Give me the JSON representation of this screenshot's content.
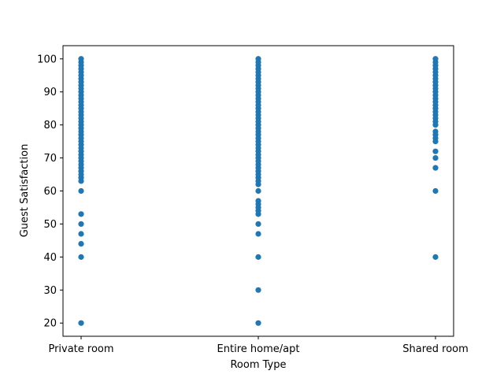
{
  "chart_data": {
    "type": "scatter",
    "title": "",
    "xlabel": "Room Type",
    "ylabel": "Guest Satisfaction",
    "categories": [
      "Private room",
      "Entire home/apt",
      "Shared room"
    ],
    "ylim": [
      16,
      104
    ],
    "yticks": [
      20,
      30,
      40,
      50,
      60,
      70,
      80,
      90,
      100
    ],
    "grid": false,
    "legend": "none",
    "marker_color": "#1f77b4",
    "points": [
      {
        "category": "Private room",
        "values": [
          20,
          40,
          44,
          47,
          50,
          53,
          60,
          63,
          64,
          65,
          66,
          67,
          68,
          69,
          70,
          71,
          72,
          73,
          74,
          75,
          76,
          77,
          78,
          79,
          80,
          81,
          82,
          83,
          84,
          85,
          86,
          87,
          88,
          89,
          90,
          91,
          92,
          93,
          94,
          95,
          96,
          97,
          98,
          99,
          100
        ]
      },
      {
        "category": "Entire home/apt",
        "values": [
          20,
          30,
          40,
          47,
          50,
          53,
          54,
          55,
          56,
          57,
          60,
          62,
          63,
          64,
          65,
          66,
          67,
          68,
          69,
          70,
          71,
          72,
          73,
          74,
          75,
          76,
          77,
          78,
          79,
          80,
          81,
          82,
          83,
          84,
          85,
          86,
          87,
          88,
          89,
          90,
          91,
          92,
          93,
          94,
          95,
          96,
          97,
          98,
          99,
          100
        ]
      },
      {
        "category": "Shared room",
        "values": [
          40,
          60,
          67,
          70,
          72,
          75,
          76,
          77,
          78,
          80,
          81,
          82,
          83,
          84,
          85,
          86,
          87,
          88,
          89,
          90,
          91,
          92,
          93,
          94,
          95,
          96,
          97,
          98,
          99,
          100
        ]
      }
    ]
  }
}
